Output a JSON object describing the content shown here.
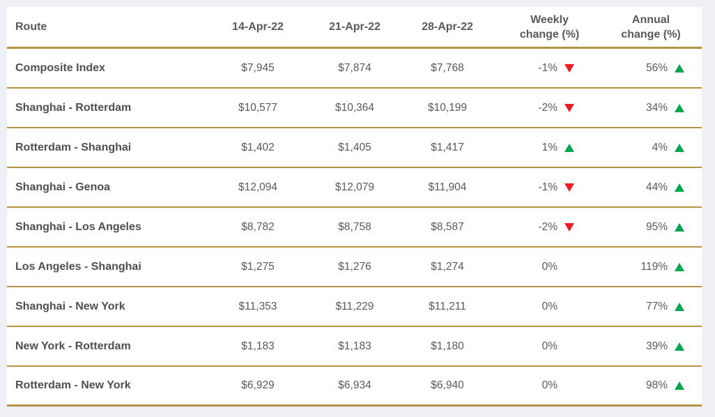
{
  "header": {
    "route": "Route",
    "dates": [
      "14-Apr-22",
      "21-Apr-22",
      "28-Apr-22"
    ],
    "weekly": [
      "Weekly",
      "change (%)"
    ],
    "annual": [
      "Annual",
      "change (%)"
    ]
  },
  "chart_data": {
    "type": "table",
    "columns": [
      "Route",
      "14-Apr-22",
      "21-Apr-22",
      "28-Apr-22",
      "Weekly change (%)",
      "Annual change (%)"
    ],
    "rows": [
      {
        "route": "Composite Index",
        "values": [
          "$7,945",
          "$7,874",
          "$7,768"
        ],
        "weekly_change": "-1%",
        "weekly_trend": "down",
        "annual_change": "56%",
        "annual_trend": "up"
      },
      {
        "route": "Shanghai - Rotterdam",
        "values": [
          "$10,577",
          "$10,364",
          "$10,199"
        ],
        "weekly_change": "-2%",
        "weekly_trend": "down",
        "annual_change": "34%",
        "annual_trend": "up"
      },
      {
        "route": "Rotterdam - Shanghai",
        "values": [
          "$1,402",
          "$1,405",
          "$1,417"
        ],
        "weekly_change": "1%",
        "weekly_trend": "up",
        "annual_change": "4%",
        "annual_trend": "up"
      },
      {
        "route": "Shanghai - Genoa",
        "values": [
          "$12,094",
          "$12,079",
          "$11,904"
        ],
        "weekly_change": "-1%",
        "weekly_trend": "down",
        "annual_change": "44%",
        "annual_trend": "up"
      },
      {
        "route": "Shanghai - Los Angeles",
        "values": [
          "$8,782",
          "$8,758",
          "$8,587"
        ],
        "weekly_change": "-2%",
        "weekly_trend": "down",
        "annual_change": "95%",
        "annual_trend": "up"
      },
      {
        "route": "Los Angeles - Shanghai",
        "values": [
          "$1,275",
          "$1,276",
          "$1,274"
        ],
        "weekly_change": "0%",
        "weekly_trend": "none",
        "annual_change": "119%",
        "annual_trend": "up"
      },
      {
        "route": "Shanghai - New York",
        "values": [
          "$11,353",
          "$11,229",
          "$11,211"
        ],
        "weekly_change": "0%",
        "weekly_trend": "none",
        "annual_change": "77%",
        "annual_trend": "up"
      },
      {
        "route": "New York - Rotterdam",
        "values": [
          "$1,183",
          "$1,183",
          "$1,180"
        ],
        "weekly_change": "0%",
        "weekly_trend": "none",
        "annual_change": "39%",
        "annual_trend": "up"
      },
      {
        "route": "Rotterdam - New York",
        "values": [
          "$6,929",
          "$6,934",
          "$6,940"
        ],
        "weekly_change": "0%",
        "weekly_trend": "none",
        "annual_change": "98%",
        "annual_trend": "up"
      }
    ]
  },
  "colors": {
    "gold_divider": "#b69243",
    "trend_up_green": "#00a551",
    "trend_down_red": "#ed1c24",
    "text_gray": "#595959",
    "page_background": "#eef0f5"
  }
}
